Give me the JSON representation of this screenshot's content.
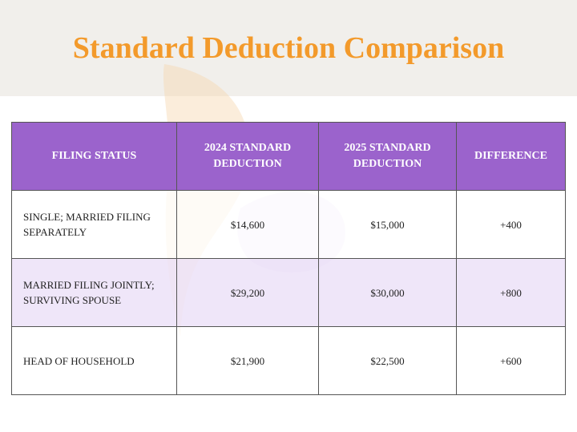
{
  "header": {
    "title": "Standard Deduction Comparison"
  },
  "table": {
    "headers": [
      "FILING STATUS",
      "2024 STANDARD DEDUCTION",
      "2025 STANDARD DEDUCTION",
      "DIFFERENCE"
    ],
    "rows": [
      [
        "SINGLE; MARRIED FILING SEPARATELY",
        "$14,600",
        "$15,000",
        "+400"
      ],
      [
        "MARRIED FILING JOINTLY; SURVIVING SPOUSE",
        "$29,200",
        "$30,000",
        "+800"
      ],
      [
        "HEAD OF HOUSEHOLD",
        "$21,900",
        "$22,500",
        "+600"
      ]
    ]
  }
}
